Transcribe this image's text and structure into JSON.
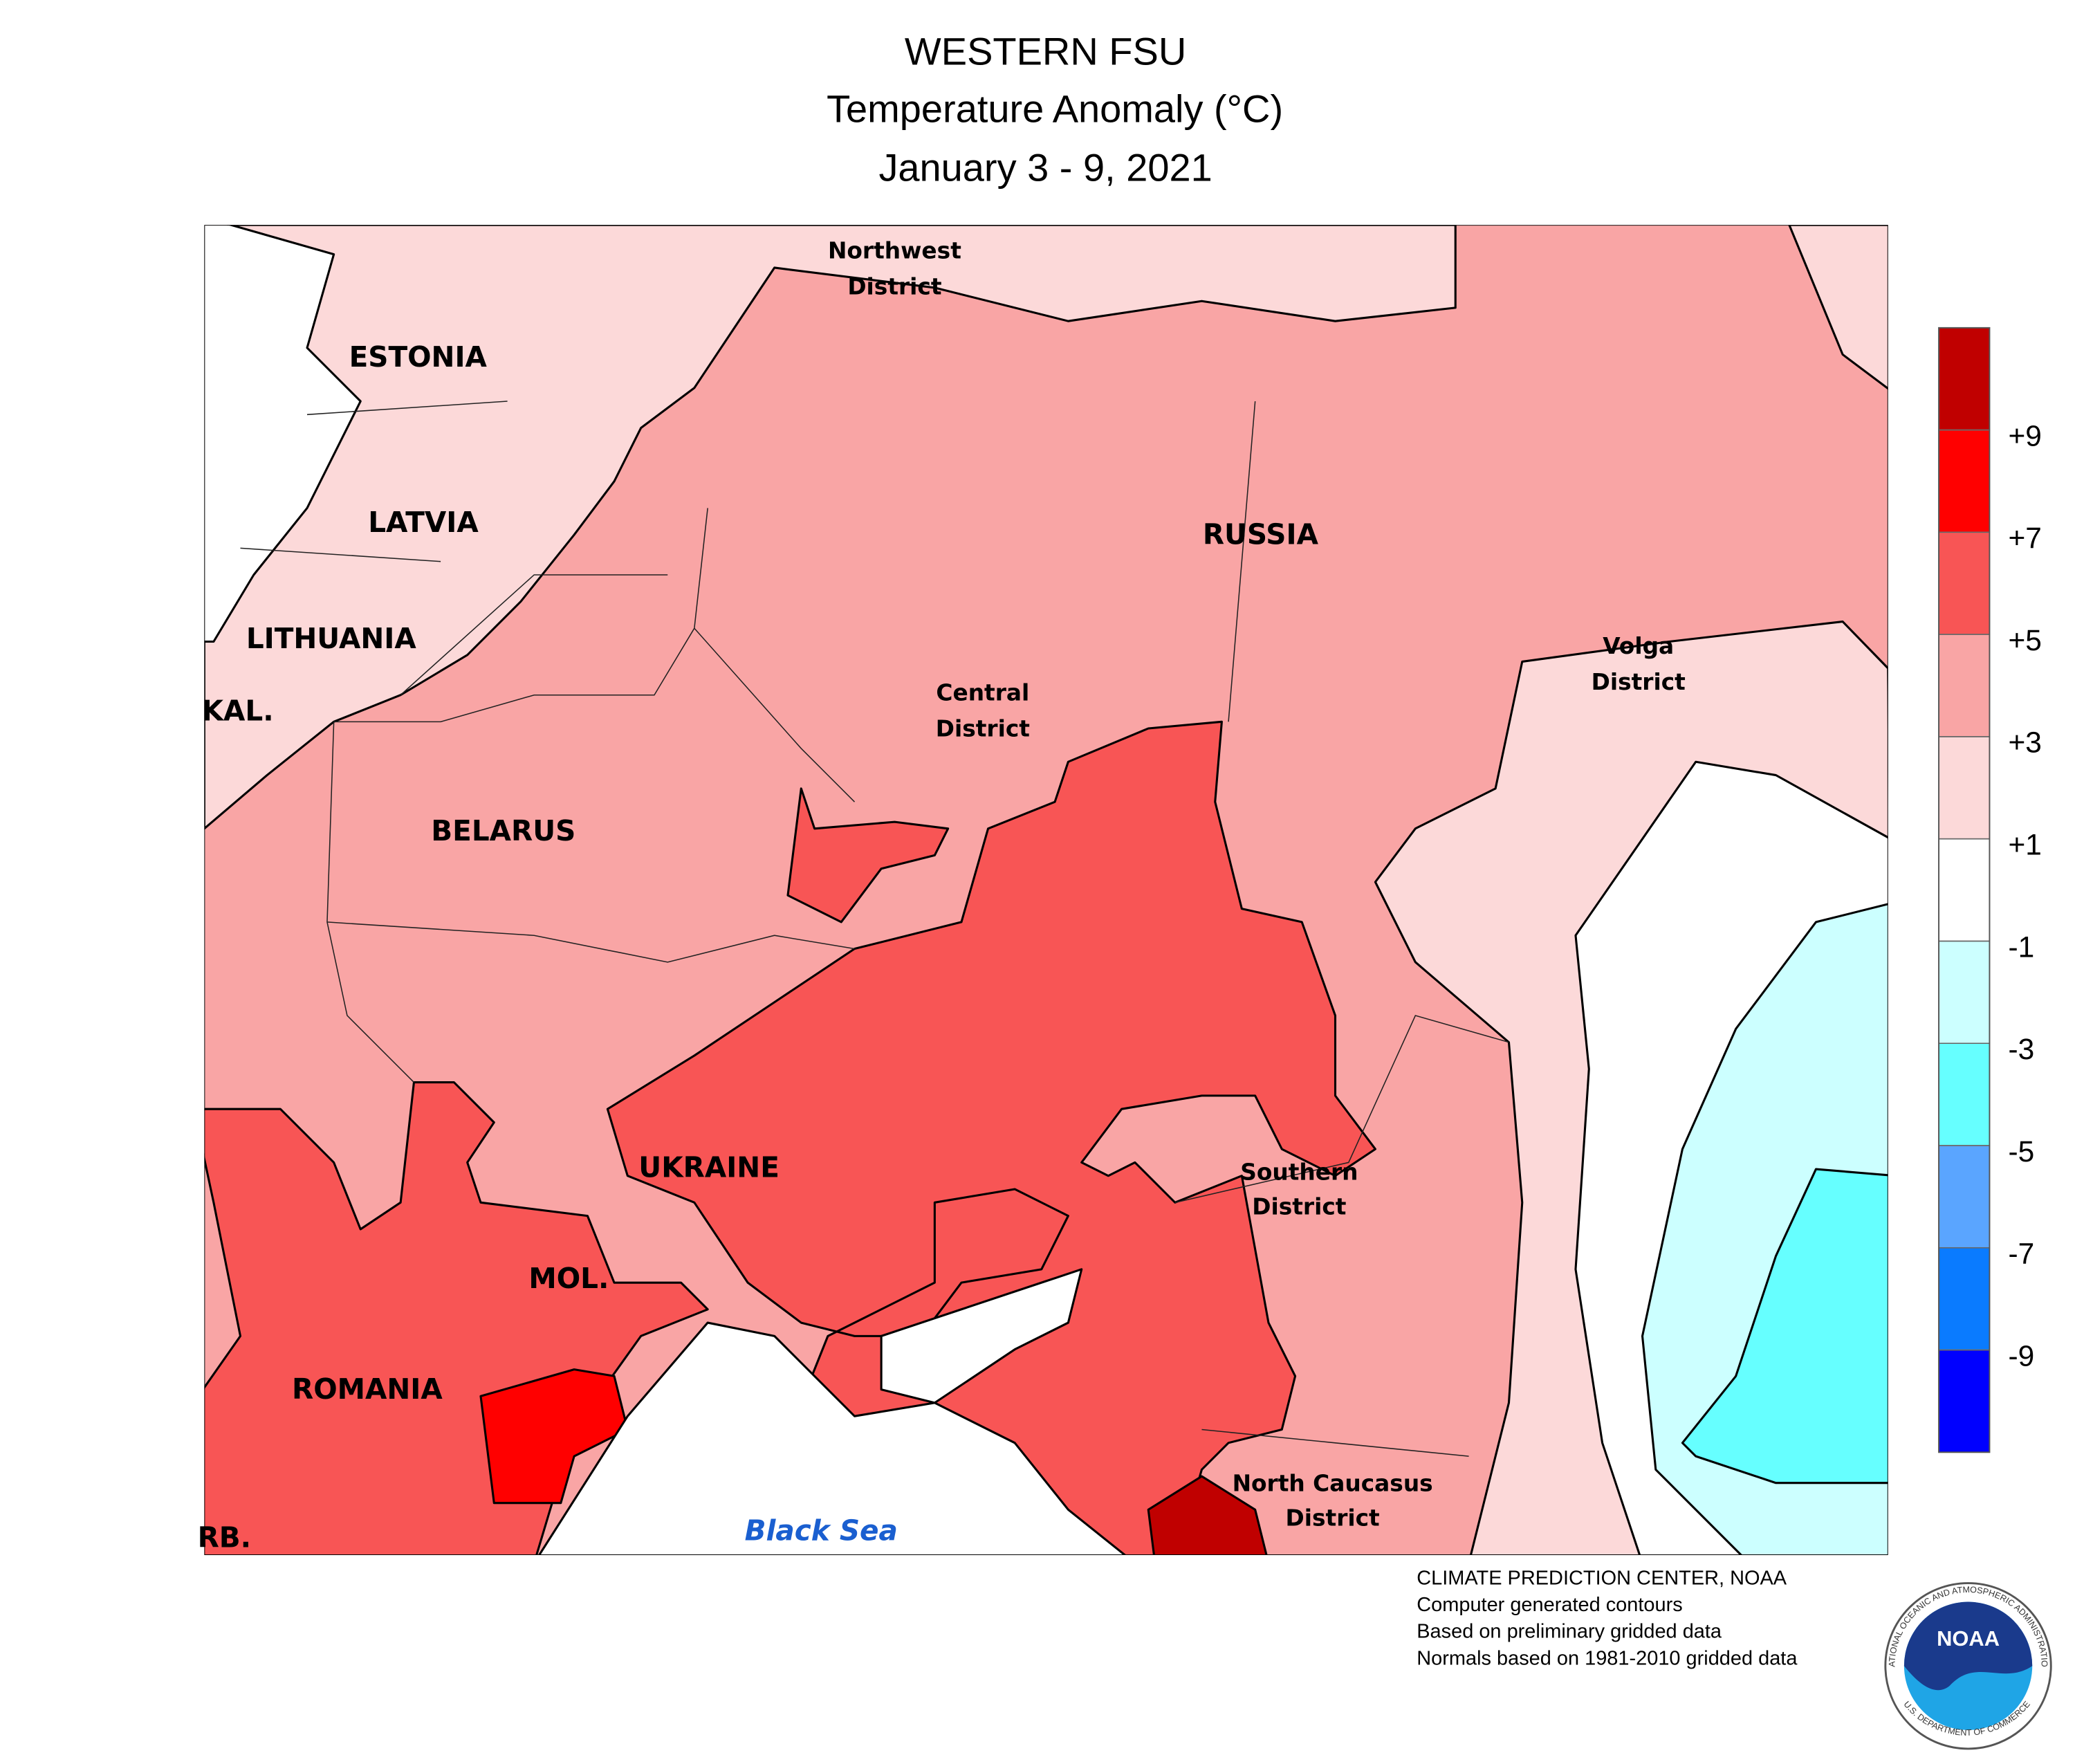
{
  "header": {
    "title": "WESTERN FSU",
    "subtitle": "Temperature Anomaly (°C)",
    "dates": "January 3 - 9, 2021"
  },
  "map": {
    "countries": [
      "ESTONIA",
      "LATVIA",
      "LITHUANIA",
      "KAL.",
      "BELARUS",
      "RUSSIA",
      "UKRAINE",
      "MOL.",
      "ROMANIA",
      "RB."
    ],
    "districts": [
      [
        "Northwest",
        "District"
      ],
      [
        "Central",
        "District"
      ],
      [
        "Volga",
        "District"
      ],
      [
        "Southern",
        "District"
      ],
      [
        "North Caucasus",
        "District"
      ]
    ],
    "sea": "Black Sea"
  },
  "legend": {
    "colors": [
      "#c00000",
      "#ff0000",
      "#f85555",
      "#f9a5a5",
      "#fcd9d9",
      "#ffffff",
      "#ccffff",
      "#66ffff",
      "#5aa5ff",
      "#0a7bff",
      "#0000ff"
    ],
    "ticks": [
      {
        "value": 9,
        "label": "+9"
      },
      {
        "value": 7,
        "label": "+7"
      },
      {
        "value": 5,
        "label": "+5"
      },
      {
        "value": 3,
        "label": "+3"
      },
      {
        "value": 1,
        "label": "+1"
      },
      -1,
      -3,
      -5,
      -7,
      -9
    ]
  },
  "credits": [
    "CLIMATE PREDICTION CENTER, NOAA",
    "Computer generated contours",
    "Based on preliminary gridded data",
    "Normals based on 1981-2010 gridded data"
  ],
  "logo": {
    "name": "NOAA",
    "ring_top": "NATIONAL OCEANIC AND ATMOSPHERIC ADMINISTRATION",
    "ring_bottom": "U.S. DEPARTMENT OF COMMERCE"
  }
}
